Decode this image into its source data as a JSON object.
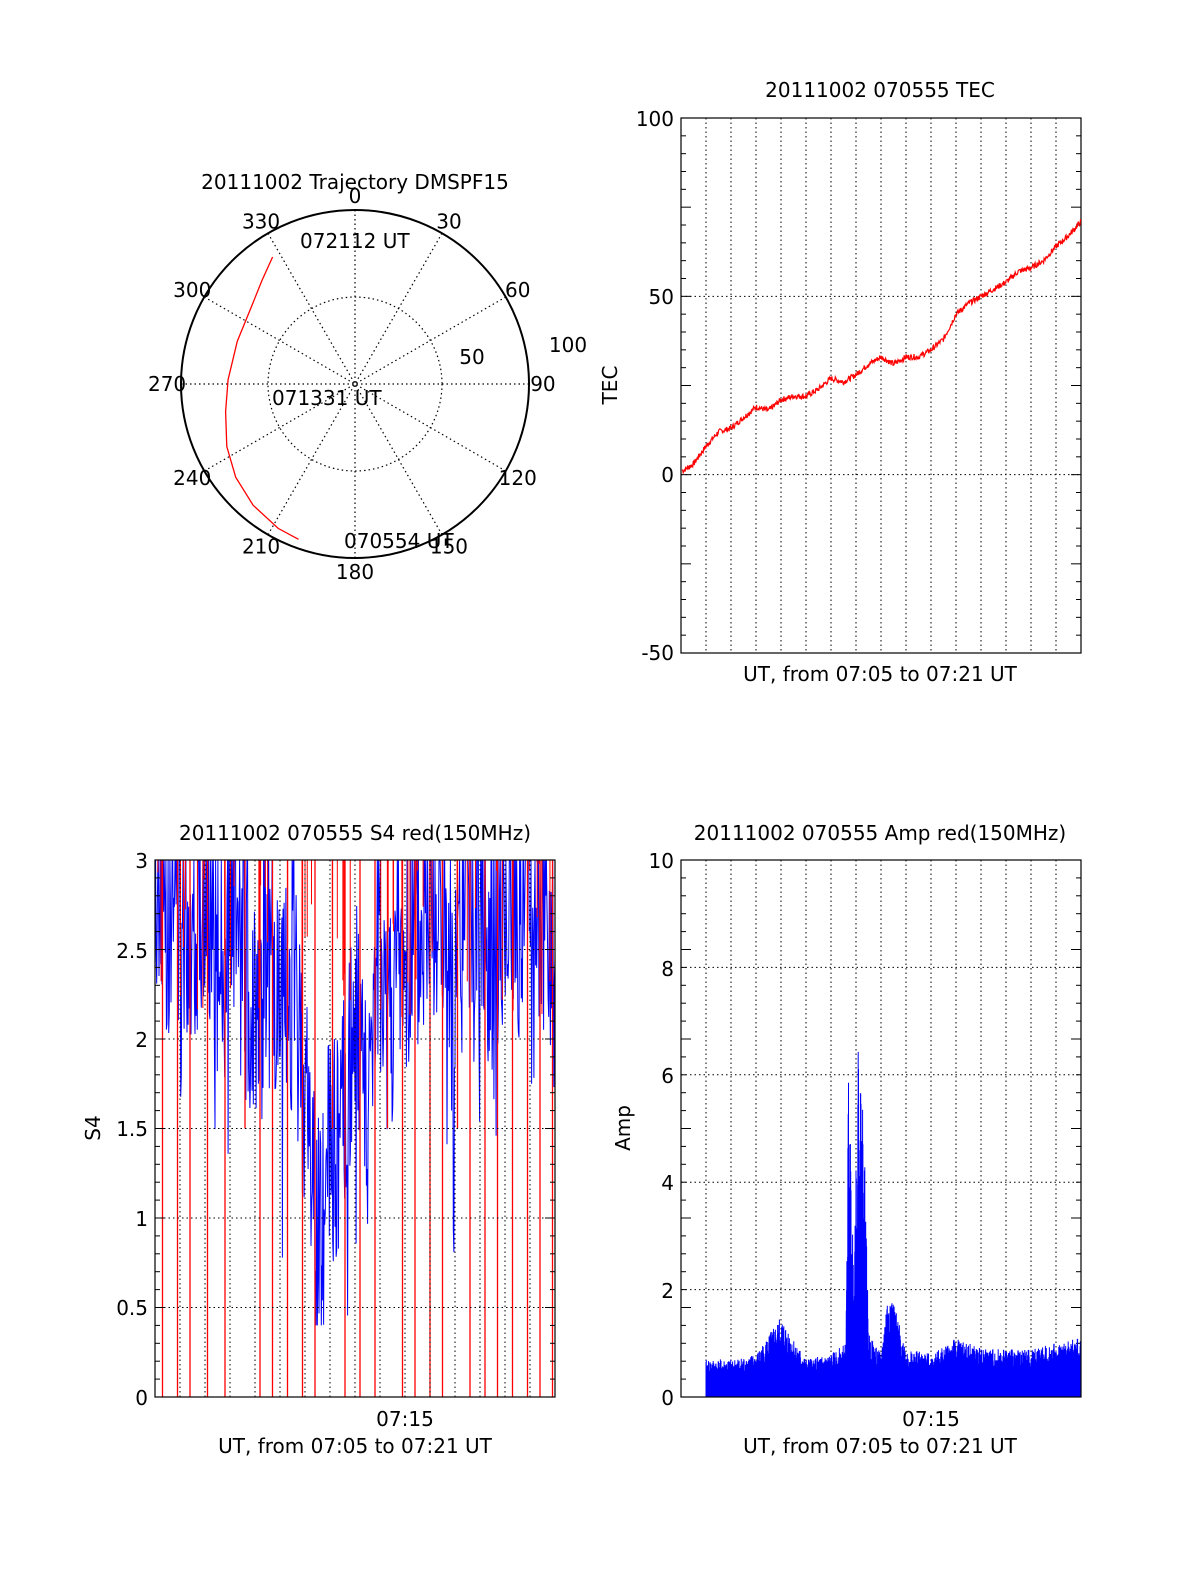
{
  "colors": {
    "red": "#ff0000",
    "blue": "#0000ff",
    "axis": "#000000",
    "grid": "#000000"
  },
  "chart_data": [
    {
      "id": "trajectory",
      "type": "polar",
      "title": "20111002 Trajectory DMSPF15",
      "rlim": [
        0,
        100
      ],
      "r_labels": [
        "50",
        "100"
      ],
      "angle_labels": [
        "0",
        "30",
        "60",
        "90",
        "120",
        "150",
        "180",
        "210",
        "240",
        "270",
        "300",
        "330"
      ],
      "annotations": [
        "072112 UT",
        "071331 UT",
        "070554 UT"
      ],
      "series": [
        {
          "color": "red",
          "points": [
            {
              "az": 327,
              "r": 87
            },
            {
              "az": 318,
              "r": 80
            },
            {
              "az": 306,
              "r": 74
            },
            {
              "az": 290,
              "r": 72
            },
            {
              "az": 272,
              "r": 73
            },
            {
              "az": 258,
              "r": 76
            },
            {
              "az": 244,
              "r": 82
            },
            {
              "az": 232,
              "r": 87
            },
            {
              "az": 220,
              "r": 91
            },
            {
              "az": 208,
              "r": 94
            },
            {
              "az": 200,
              "r": 95
            }
          ]
        }
      ]
    },
    {
      "id": "tec",
      "type": "line",
      "title": "20111002 070555 TEC",
      "xlabel": "UT, from 07:05 to 07:21 UT",
      "ylabel": "TEC",
      "ylim": [
        -50,
        100
      ],
      "y_ticks": [
        "-50",
        "0",
        "50",
        "100"
      ],
      "xlim": [
        0,
        16
      ],
      "x_grid": [
        1,
        2,
        3,
        4,
        5,
        6,
        7,
        8,
        9,
        10,
        11,
        12,
        13,
        14,
        15
      ],
      "y_grid": [
        0,
        50
      ],
      "series": [
        {
          "color": "red",
          "x": [
            0.05,
            0.5,
            1,
            1.5,
            2,
            2.5,
            3,
            3.5,
            4,
            4.5,
            5,
            5.5,
            6,
            6.5,
            7,
            7.5,
            8,
            8.5,
            9,
            9.5,
            10,
            10.5,
            11,
            11.5,
            12,
            12.5,
            13,
            13.5,
            14,
            14.5,
            15,
            15.5,
            16
          ],
          "y": [
            1,
            3,
            8,
            12,
            13,
            16,
            19,
            18,
            21,
            22,
            22,
            24,
            27,
            26,
            28,
            31,
            33,
            31,
            33,
            33,
            35,
            38,
            45,
            48,
            50,
            52,
            54,
            57,
            58,
            60,
            64,
            67,
            71
          ]
        }
      ]
    },
    {
      "id": "s4",
      "type": "line",
      "title": "20111002 070555 S4 red(150MHz)",
      "xlabel": "UT, from 07:05 to 07:21 UT",
      "ylabel": "S4",
      "ylim": [
        0,
        3
      ],
      "y_ticks": [
        "0",
        "0.5",
        "1",
        "1.5",
        "2",
        "2.5",
        "3"
      ],
      "x_ticks": [
        "07:15"
      ],
      "xlim": [
        0,
        16
      ],
      "x_grid": [
        1,
        2,
        3,
        4,
        5,
        6,
        7,
        8,
        9,
        10,
        11,
        12,
        13,
        14,
        15
      ],
      "y_grid": [
        0.5,
        1,
        1.5,
        2,
        2.5
      ],
      "series": [
        {
          "color": "blue",
          "x": [
            0.1,
            0.5,
            1,
            1.5,
            2,
            2.5,
            3,
            3.5,
            4,
            4.5,
            5,
            5.5,
            6,
            6.5,
            7,
            7.5,
            8,
            8.5,
            9,
            9.5,
            10,
            10.5,
            11,
            11.5,
            12,
            12.5,
            13,
            13.5,
            14,
            14.5,
            15,
            15.5,
            16
          ],
          "y": [
            2.8,
            2.5,
            2.6,
            2.4,
            2.7,
            2.3,
            2.6,
            2.2,
            2.0,
            2.4,
            1.8,
            2.1,
            1.5,
            0.8,
            1.1,
            1.3,
            1.9,
            1.6,
            2.3,
            2.0,
            2.4,
            2.2,
            2.6,
            2.4,
            1.9,
            2.5,
            2.7,
            2.3,
            2.6,
            2.4,
            2.8,
            2.5,
            2.2
          ]
        },
        {
          "color": "red",
          "x": [
            0.3,
            0.9,
            1.4,
            2.1,
            2.8,
            3.6,
            4.2,
            4.7,
            5.3,
            5.9,
            6.4,
            7.1,
            7.6,
            8.2,
            8.8,
            9.3,
            9.9,
            10.4,
            11.0,
            11.5,
            12.1,
            12.6,
            13.2,
            13.7,
            14.3,
            14.9,
            15.4,
            15.9
          ],
          "y": [
            0,
            0,
            0,
            0,
            0,
            1.5,
            0,
            0,
            0,
            0,
            0,
            1.5,
            0,
            0,
            0,
            1.5,
            0,
            0,
            0,
            0,
            1.5,
            0,
            0,
            0,
            0,
            0,
            0,
            0
          ]
        }
      ]
    },
    {
      "id": "amp",
      "type": "line",
      "title": "20111002 070555 Amp red(150MHz)",
      "xlabel": "UT, from 07:05 to 07:21 UT",
      "ylabel": "Amp",
      "ylim": [
        0,
        10
      ],
      "y_ticks": [
        "0",
        "2",
        "4",
        "6",
        "8",
        "10"
      ],
      "x_ticks": [
        "07:15"
      ],
      "xlim": [
        0,
        16
      ],
      "x_grid": [
        1,
        2,
        3,
        4,
        5,
        6,
        7,
        8,
        9,
        10,
        11,
        12,
        13,
        14,
        15
      ],
      "y_grid": [
        2,
        4,
        6,
        8
      ],
      "series": [
        {
          "color": "blue",
          "x": [
            0,
            1,
            2,
            3,
            4,
            5,
            6,
            6.6,
            6.7,
            6.9,
            7.1,
            7.3,
            7.5,
            8,
            8.3,
            9,
            10,
            11,
            12,
            13,
            14,
            15,
            16
          ],
          "y": [
            0.6,
            0.7,
            0.7,
            0.8,
            1.5,
            0.7,
            0.8,
            1.0,
            6.1,
            2.5,
            6.7,
            5.5,
            1.2,
            0.8,
            2.1,
            0.9,
            0.8,
            1.1,
            0.9,
            0.9,
            0.9,
            1.0,
            1.1
          ]
        }
      ]
    }
  ]
}
